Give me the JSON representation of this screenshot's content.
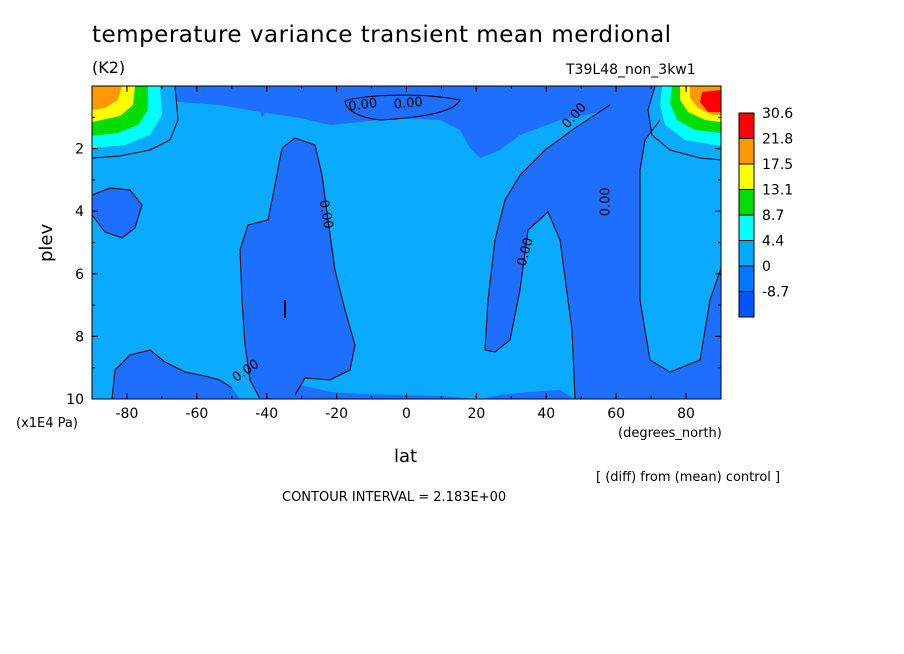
{
  "figure": {
    "title": "temperature variance transient mean merdional",
    "units": "(K2)",
    "run_id": "T39L48_non_3kw1",
    "y_unit": "(x1E4 Pa)",
    "x_unit": "(degrees_north)",
    "x_label": "lat",
    "y_label": "plev",
    "note": "[ (diff) from (mean) control ]",
    "contour_interval": "CONTOUR INTERVAL = 2.183E+00"
  },
  "chart_data": {
    "type": "heatmap",
    "subtype": "filled contour",
    "title": "temperature variance transient mean merdional",
    "xlabel": "lat",
    "ylabel": "plev",
    "xlim": [
      -90,
      90
    ],
    "ylim": [
      10,
      0
    ],
    "x_ticks": [
      -80,
      -60,
      -40,
      -20,
      0,
      20,
      40,
      60,
      80
    ],
    "x_tick_labels": [
      "-80",
      "-60",
      "-40",
      "-20",
      "0",
      "20",
      "40",
      "60",
      "80"
    ],
    "y_ticks": [
      2,
      4,
      6,
      8,
      10
    ],
    "y_tick_labels": [
      "2",
      "4",
      "6",
      "8",
      "10"
    ],
    "contour_labels": [
      {
        "text": "0.00",
        "lat": -12.5,
        "plev": 0.6,
        "angle": -8
      },
      {
        "text": "0.00",
        "lat": 0.5,
        "plev": 0.55,
        "angle": -5
      },
      {
        "text": "0.00",
        "lat": 48,
        "plev": 0.95,
        "angle": -48
      },
      {
        "text": "0.00",
        "lat": -23,
        "plev": 4.1,
        "angle": 80
      },
      {
        "text": "0.00",
        "lat": 34,
        "plev": 5.3,
        "angle": -75
      },
      {
        "text": "0.00",
        "lat": 57,
        "plev": 3.7,
        "angle": -90
      },
      {
        "text": "0.00",
        "lat": -46,
        "plev": 9.1,
        "angle": -35
      }
    ],
    "colorbar": {
      "levels": [
        "30.6",
        "21.8",
        "17.5",
        "13.1",
        "8.7",
        "4.4",
        "0",
        "-8.7"
      ],
      "colors": [
        "#ff0000",
        "#ff9900",
        "#ffff00",
        "#00dd00",
        "#00ffff",
        "#00aaff",
        "#0077ff",
        "#0055ff"
      ]
    },
    "fill_colors": {
      "negative": "#1e6eff",
      "zero_to_4_4": "#0aaaff",
      "4_4_to_8_7": "#00ffff",
      "8_7_to_13_1": "#00dd00",
      "13_1_to_17_5": "#ffff00",
      "17_5_to_21_8": "#ff9900",
      "above_21_8": "#ff0000"
    },
    "grid": false,
    "legend": "colorbar-right"
  }
}
